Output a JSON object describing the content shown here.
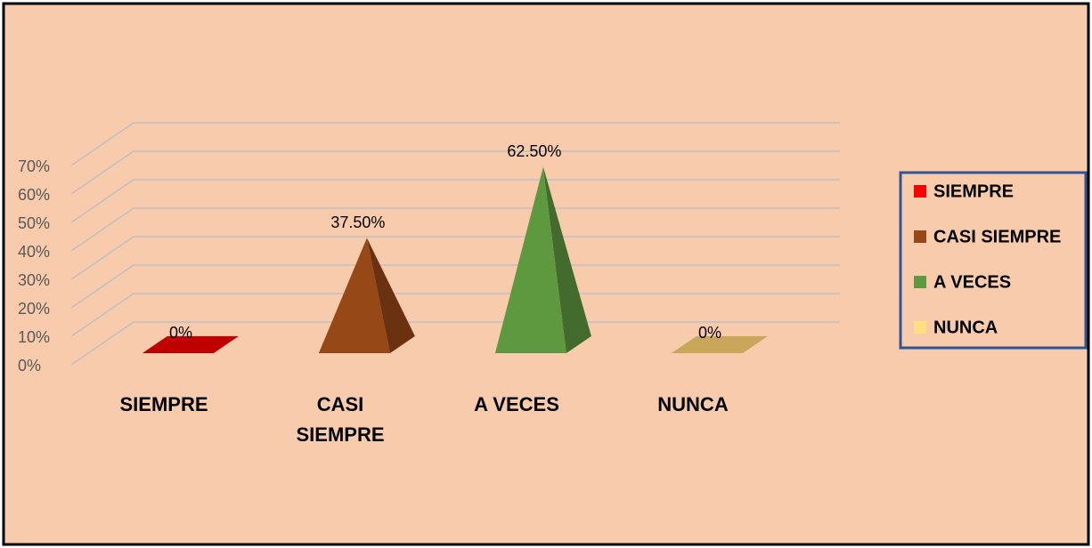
{
  "chart_data": {
    "type": "pyramid3d",
    "categories": [
      "SIEMPRE",
      "CASI SIEMPRE",
      "A VECES",
      "NUNCA"
    ],
    "values": [
      0,
      37.5,
      62.5,
      0
    ],
    "value_labels": [
      "0%",
      "37.50%",
      "62.50%",
      "0%"
    ],
    "colors": [
      "#c00000",
      "#974817",
      "#5e9940",
      "#c9a75a"
    ],
    "legend_colors": [
      "#ff0000",
      "#974817",
      "#5e9940",
      "#ffe080"
    ],
    "ylim": [
      0,
      70
    ],
    "yticks": [
      {
        "value": 0,
        "label": "0%"
      },
      {
        "value": 10,
        "label": "10%"
      },
      {
        "value": 20,
        "label": "20%"
      },
      {
        "value": 30,
        "label": "30%"
      },
      {
        "value": 40,
        "label": "40%"
      },
      {
        "value": 50,
        "label": "50%"
      },
      {
        "value": 60,
        "label": "60%"
      },
      {
        "value": 70,
        "label": "70%"
      }
    ],
    "grid": true,
    "legend": "right"
  }
}
